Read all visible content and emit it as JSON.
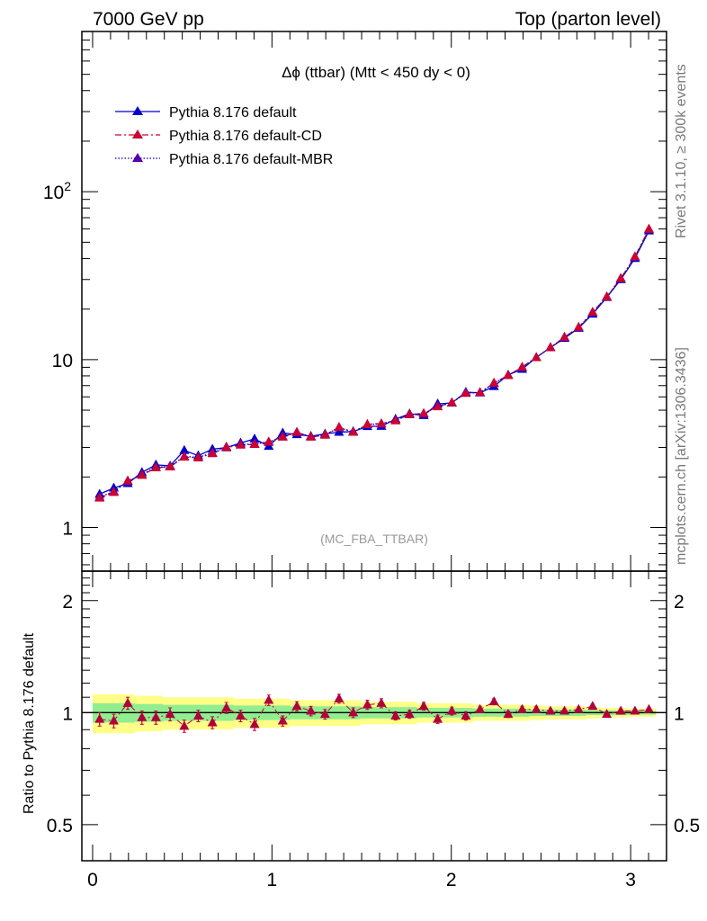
{
  "header": {
    "left": "7000 GeV pp",
    "right": "Top (parton level)"
  },
  "side_labels": {
    "rivet": "Rivet 3.1.10, ≥ 300k events",
    "mcplots": "mcplots.cern.ch [arXiv:1306.3436]"
  },
  "chart_data": {
    "type": "line",
    "title": "Δϕ (ttbar) (Mtt < 450 dy < 0)",
    "reference_label": "(MC_FBA_TTBAR)",
    "yscale": "log",
    "xlim": [
      -0.06,
      3.2
    ],
    "ylim": [
      0.55,
      900
    ],
    "grid": false,
    "legend_position": "top-left",
    "x_ticks": [
      {
        "v": 0,
        "t": "0"
      },
      {
        "v": 1,
        "t": "1"
      },
      {
        "v": 2,
        "t": "2"
      },
      {
        "v": 3,
        "t": "3"
      }
    ],
    "y_ticks": [
      {
        "v": 1,
        "t": "1"
      },
      {
        "v": 10,
        "t": "10"
      },
      {
        "v": 100,
        "t": "10",
        "sup": "2"
      }
    ],
    "x": [
      0.039,
      0.118,
      0.196,
      0.275,
      0.353,
      0.432,
      0.511,
      0.589,
      0.668,
      0.746,
      0.825,
      0.903,
      0.982,
      1.06,
      1.139,
      1.217,
      1.296,
      1.374,
      1.453,
      1.532,
      1.61,
      1.689,
      1.767,
      1.846,
      1.924,
      2.003,
      2.081,
      2.16,
      2.238,
      2.317,
      2.395,
      2.474,
      2.553,
      2.631,
      2.71,
      2.788,
      2.867,
      2.945,
      3.024,
      3.102
    ],
    "series": [
      {
        "name": "Pythia 8.176 default",
        "color": "#0000cc",
        "line": "solid",
        "values": [
          1.58,
          1.72,
          1.83,
          2.13,
          2.36,
          2.33,
          2.88,
          2.68,
          2.93,
          2.99,
          3.19,
          3.37,
          3.05,
          3.66,
          3.58,
          3.5,
          3.61,
          3.7,
          3.73,
          4.0,
          4.01,
          4.42,
          4.76,
          4.65,
          5.45,
          5.52,
          6.4,
          6.34,
          6.93,
          8.11,
          8.77,
          10.3,
          11.8,
          13.4,
          15.4,
          18.7,
          23.5,
          30.0,
          40.1,
          58.5
        ]
      },
      {
        "name": "Pythia 8.176 default-CD",
        "color": "#cc0033",
        "line": "dashdot",
        "values": [
          1.5,
          1.62,
          1.9,
          2.05,
          2.27,
          2.3,
          2.63,
          2.6,
          2.76,
          3.0,
          3.1,
          3.13,
          3.24,
          3.46,
          3.7,
          3.46,
          3.55,
          3.96,
          3.7,
          4.12,
          4.16,
          4.33,
          4.72,
          4.78,
          5.25,
          5.55,
          6.3,
          6.38,
          7.26,
          8.05,
          9.03,
          10.3,
          11.8,
          13.6,
          15.6,
          19.2,
          23.7,
          30.5,
          41.0,
          60.0
        ]
      },
      {
        "name": "Pythia 8.176 default-MBR",
        "color": "#0000cc",
        "line": "dotted",
        "values": [
          1.52,
          1.64,
          1.88,
          2.07,
          2.29,
          2.31,
          2.65,
          2.62,
          2.78,
          3.02,
          3.12,
          3.15,
          3.22,
          3.48,
          3.68,
          3.48,
          3.57,
          3.93,
          3.71,
          4.1,
          4.14,
          4.35,
          4.7,
          4.76,
          5.27,
          5.53,
          6.32,
          6.36,
          7.22,
          8.07,
          8.98,
          10.3,
          11.8,
          13.6,
          15.5,
          19.1,
          23.6,
          30.4,
          40.8,
          59.5
        ]
      }
    ],
    "ratio": {
      "ylabel": "Ratio to Pythia 8.176 default",
      "yscale": "log",
      "ylim": [
        0.4,
        2.4
      ],
      "y_ticks": [
        {
          "v": 0.5,
          "t": "0.5"
        },
        {
          "v": 1,
          "t": "1"
        },
        {
          "v": 2,
          "t": "2"
        }
      ],
      "values": [
        0.96,
        0.95,
        1.06,
        0.97,
        0.97,
        0.99,
        0.92,
        0.98,
        0.94,
        1.03,
        0.98,
        0.93,
        1.08,
        0.95,
        1.04,
        1.01,
        0.99,
        1.09,
        1.0,
        1.05,
        1.06,
        0.98,
        0.99,
        1.04,
        0.96,
        1.01,
        0.98,
        1.02,
        1.07,
        0.99,
        1.02,
        1.02,
        1.01,
        1.01,
        1.02,
        1.04,
        0.99,
        1.01,
        1.01,
        1.02
      ],
      "errors": [
        0.04,
        0.04,
        0.04,
        0.04,
        0.04,
        0.04,
        0.035,
        0.035,
        0.035,
        0.035,
        0.035,
        0.035,
        0.035,
        0.03,
        0.03,
        0.03,
        0.03,
        0.03,
        0.03,
        0.03,
        0.03,
        0.025,
        0.025,
        0.025,
        0.025,
        0.025,
        0.025,
        0.02,
        0.02,
        0.02,
        0.02,
        0.02,
        0.015,
        0.015,
        0.015,
        0.015,
        0.012,
        0.012,
        0.01,
        0.01
      ],
      "band_inner": [
        0.06,
        0.06,
        0.06,
        0.055,
        0.055,
        0.05,
        0.05,
        0.05,
        0.05,
        0.05,
        0.045,
        0.045,
        0.045,
        0.045,
        0.04,
        0.04,
        0.04,
        0.04,
        0.04,
        0.035,
        0.035,
        0.035,
        0.035,
        0.03,
        0.03,
        0.03,
        0.03,
        0.025,
        0.025,
        0.025,
        0.025,
        0.02,
        0.02,
        0.02,
        0.02,
        0.015,
        0.015,
        0.015,
        0.012,
        0.012
      ],
      "band_outer": [
        0.12,
        0.12,
        0.12,
        0.11,
        0.11,
        0.1,
        0.1,
        0.1,
        0.1,
        0.1,
        0.09,
        0.09,
        0.09,
        0.09,
        0.08,
        0.08,
        0.08,
        0.08,
        0.08,
        0.07,
        0.07,
        0.07,
        0.07,
        0.06,
        0.06,
        0.06,
        0.06,
        0.05,
        0.05,
        0.05,
        0.05,
        0.045,
        0.04,
        0.04,
        0.04,
        0.035,
        0.03,
        0.03,
        0.025,
        0.025
      ],
      "inner_color": "#90ee90",
      "outer_color": "#ffff88"
    }
  }
}
